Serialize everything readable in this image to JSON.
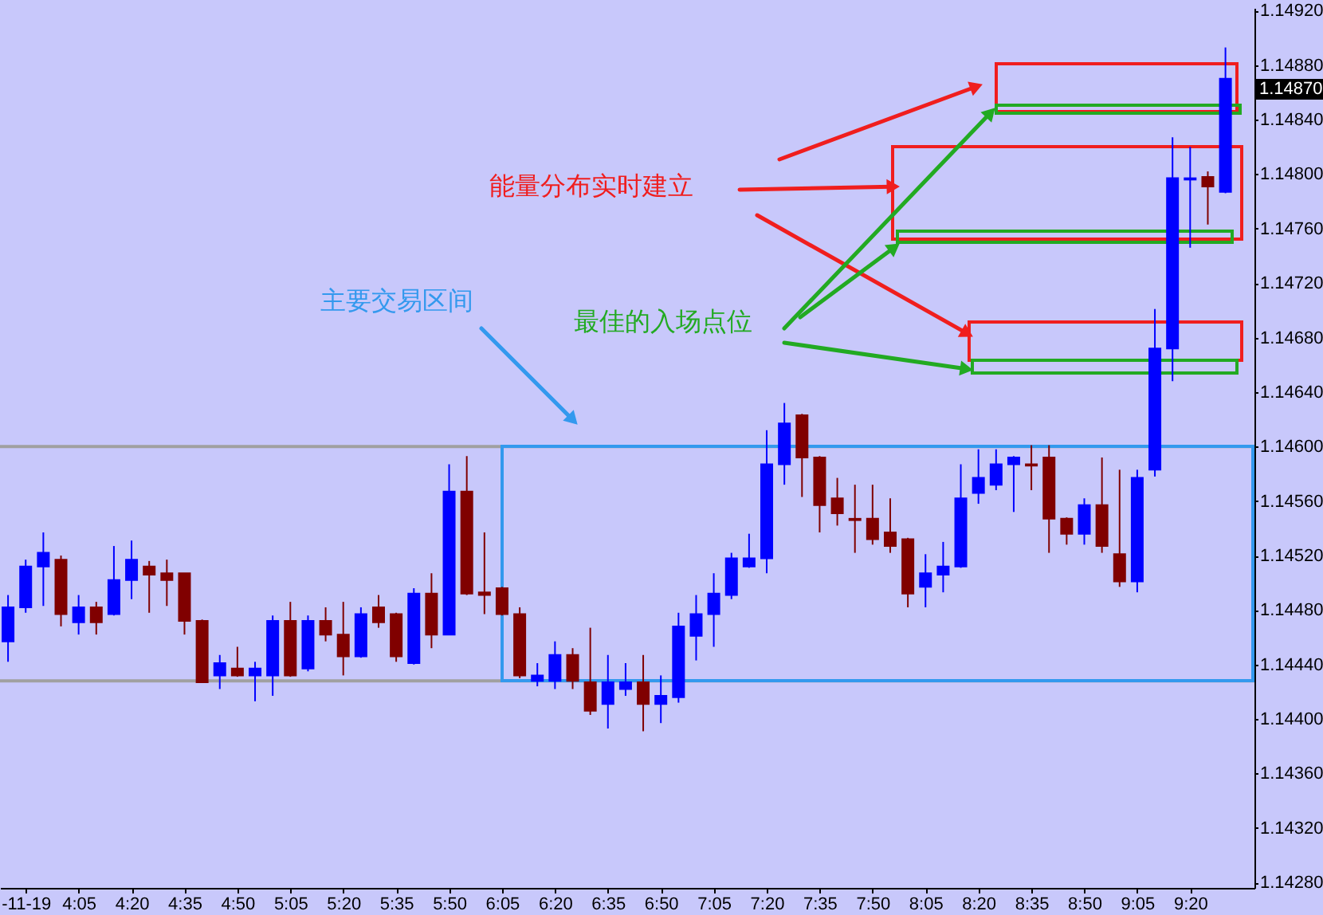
{
  "chart_data": {
    "type": "candlestick",
    "x": [
      3.75,
      3.8333,
      3.9167,
      4,
      4.0833,
      4.1667,
      4.25,
      4.3333,
      4.4167,
      4.5,
      4.5833,
      4.6667,
      4.75,
      4.8333,
      4.9167,
      5,
      5.0833,
      5.1667,
      5.25,
      5.3333,
      5.4167,
      5.5,
      5.5833,
      5.6667,
      5.75,
      5.8333,
      5.9167,
      6,
      6.0833,
      6.1667,
      6.25,
      6.3333,
      6.4167,
      6.5,
      6.5833,
      6.6667,
      6.75,
      6.8333,
      6.9167,
      7,
      7.0833,
      7.1667,
      7.25,
      7.3333,
      7.4167,
      7.5,
      7.5833,
      7.6667,
      7.75,
      7.8333,
      7.9167,
      8,
      8.0833,
      8.1667,
      8.25,
      8.3333,
      8.4167,
      8.5,
      8.5833,
      8.6667,
      8.75,
      8.8333,
      8.9167,
      9,
      9.0833,
      9.1667,
      9.25,
      9.3333,
      9.4167,
      9.5
    ],
    "ohlc": [
      [
        1.14457,
        1.14491,
        1.14442,
        1.14482
      ],
      [
        1.14482,
        1.14517,
        1.14478,
        1.14512
      ],
      [
        1.14512,
        1.14537,
        1.14483,
        1.14522
      ],
      [
        1.14517,
        1.1452,
        1.14468,
        1.14477
      ],
      [
        1.14471,
        1.14491,
        1.14462,
        1.14482
      ],
      [
        1.14482,
        1.14486,
        1.14462,
        1.14471
      ],
      [
        1.14477,
        1.14527,
        1.14476,
        1.14502
      ],
      [
        1.14502,
        1.14531,
        1.14488,
        1.14517
      ],
      [
        1.14512,
        1.14516,
        1.14478,
        1.14506
      ],
      [
        1.14507,
        1.14517,
        1.14483,
        1.14502
      ],
      [
        1.14507,
        1.14507,
        1.14462,
        1.14472
      ],
      [
        1.14472,
        1.14473,
        1.14427,
        1.14427
      ],
      [
        1.14432,
        1.14447,
        1.14422,
        1.14441
      ],
      [
        1.14437,
        1.14453,
        1.14431,
        1.14432
      ],
      [
        1.14432,
        1.14442,
        1.14413,
        1.14437
      ],
      [
        1.14432,
        1.14476,
        1.14417,
        1.14472
      ],
      [
        1.14472,
        1.14486,
        1.14431,
        1.14432
      ],
      [
        1.14437,
        1.14476,
        1.14435,
        1.14472
      ],
      [
        1.14472,
        1.14482,
        1.14457,
        1.14462
      ],
      [
        1.14462,
        1.14486,
        1.14432,
        1.14446
      ],
      [
        1.14446,
        1.14482,
        1.14445,
        1.14477
      ],
      [
        1.14482,
        1.14491,
        1.14467,
        1.14471
      ],
      [
        1.14477,
        1.14478,
        1.14442,
        1.14446
      ],
      [
        1.14441,
        1.14496,
        1.1444,
        1.14492
      ],
      [
        1.14492,
        1.14507,
        1.14452,
        1.14462
      ],
      [
        1.14462,
        1.14587,
        1.14462,
        1.14567
      ],
      [
        1.14567,
        1.14593,
        1.14491,
        1.14492
      ],
      [
        1.14493,
        1.14537,
        1.14477,
        1.14491
      ],
      [
        1.14496,
        1.14497,
        1.14476,
        1.14477
      ],
      [
        1.14477,
        1.14482,
        1.1443,
        1.14432
      ],
      [
        1.14428,
        1.14441,
        1.14424,
        1.14432
      ],
      [
        1.14428,
        1.14457,
        1.14422,
        1.14447
      ],
      [
        1.14447,
        1.14452,
        1.14422,
        1.14428
      ],
      [
        1.14427,
        1.14467,
        1.14403,
        1.14406
      ],
      [
        1.14411,
        1.14447,
        1.14393,
        1.14427
      ],
      [
        1.14422,
        1.14441,
        1.14417,
        1.14427
      ],
      [
        1.14427,
        1.14447,
        1.14391,
        1.14411
      ],
      [
        1.14411,
        1.14432,
        1.14397,
        1.14417
      ],
      [
        1.14416,
        1.14478,
        1.14412,
        1.14468
      ],
      [
        1.14461,
        1.14491,
        1.14443,
        1.14477
      ],
      [
        1.14477,
        1.14507,
        1.14453,
        1.14492
      ],
      [
        1.14491,
        1.14522,
        1.14488,
        1.14518
      ],
      [
        1.14512,
        1.14536,
        1.14511,
        1.14518
      ],
      [
        1.14518,
        1.14612,
        1.14507,
        1.14587
      ],
      [
        1.14587,
        1.14632,
        1.14572,
        1.14617
      ],
      [
        1.14623,
        1.14624,
        1.14563,
        1.14592
      ],
      [
        1.14592,
        1.14593,
        1.14537,
        1.14557
      ],
      [
        1.14562,
        1.14577,
        1.14542,
        1.14551
      ],
      [
        1.14547,
        1.14572,
        1.14522,
        1.14546
      ],
      [
        1.14547,
        1.14572,
        1.14528,
        1.14532
      ],
      [
        1.14537,
        1.14562,
        1.14522,
        1.14527
      ],
      [
        1.14532,
        1.14533,
        1.14482,
        1.14492
      ],
      [
        1.14497,
        1.14521,
        1.14482,
        1.14507
      ],
      [
        1.14506,
        1.1453,
        1.14493,
        1.14512
      ],
      [
        1.14512,
        1.14587,
        1.14511,
        1.14562
      ],
      [
        1.14566,
        1.14598,
        1.14558,
        1.14577
      ],
      [
        1.14572,
        1.14598,
        1.14568,
        1.14587
      ],
      [
        1.14587,
        1.14593,
        1.14552,
        1.14592
      ],
      [
        1.14587,
        1.14601,
        1.14568,
        1.14586
      ],
      [
        1.14592,
        1.14601,
        1.14522,
        1.14547
      ],
      [
        1.14547,
        1.14548,
        1.14528,
        1.14536
      ],
      [
        1.14536,
        1.14562,
        1.14528,
        1.14557
      ],
      [
        1.14557,
        1.14592,
        1.14522,
        1.14527
      ],
      [
        1.14521,
        1.14583,
        1.14497,
        1.14501
      ],
      [
        1.14501,
        1.14583,
        1.14493,
        1.14577
      ],
      [
        1.14583,
        1.14701,
        1.14578,
        1.14672
      ],
      [
        1.14672,
        1.14827,
        1.14648,
        1.14797
      ],
      [
        1.14796,
        1.1482,
        1.14746,
        1.14797
      ],
      [
        1.14798,
        1.14802,
        1.14763,
        1.14791
      ],
      [
        1.14787,
        1.14893,
        1.14786,
        1.1487
      ]
    ],
    "colors": [
      "#0000ff",
      "#0000ff",
      "#0000ff",
      "#800000",
      "#0000ff",
      "#800000",
      "#0000ff",
      "#0000ff",
      "#800000",
      "#800000",
      "#800000",
      "#800000",
      "#0000ff",
      "#800000",
      "#0000ff",
      "#0000ff",
      "#800000",
      "#0000ff",
      "#800000",
      "#800000",
      "#0000ff",
      "#800000",
      "#800000",
      "#0000ff",
      "#800000",
      "#0000ff",
      "#800000",
      "#800000",
      "#800000",
      "#800000",
      "#0000ff",
      "#0000ff",
      "#800000",
      "#800000",
      "#0000ff",
      "#0000ff",
      "#800000",
      "#0000ff",
      "#0000ff",
      "#0000ff",
      "#0000ff",
      "#0000ff",
      "#0000ff",
      "#0000ff",
      "#0000ff",
      "#800000",
      "#800000",
      "#800000",
      "#800000",
      "#800000",
      "#800000",
      "#800000",
      "#0000ff",
      "#0000ff",
      "#0000ff",
      "#0000ff",
      "#0000ff",
      "#0000ff",
      "#800000",
      "#800000",
      "#800000",
      "#0000ff",
      "#800000",
      "#800000",
      "#0000ff",
      "#0000ff",
      "#0000ff",
      "#0000ff",
      "#800000",
      "#0000ff"
    ],
    "xlim": [
      3.712,
      9.637
    ],
    "xticks": [
      {
        "value": 3.8333,
        "label": "-11-19"
      },
      {
        "value": 4.0833,
        "label": "4:05"
      },
      {
        "value": 4.3333,
        "label": "4:20"
      },
      {
        "value": 4.5833,
        "label": "4:35"
      },
      {
        "value": 4.8333,
        "label": "4:50"
      },
      {
        "value": 5.0833,
        "label": "5:05"
      },
      {
        "value": 5.3333,
        "label": "5:20"
      },
      {
        "value": 5.5833,
        "label": "5:35"
      },
      {
        "value": 5.8333,
        "label": "5:50"
      },
      {
        "value": 6.0833,
        "label": "6:05"
      },
      {
        "value": 6.3333,
        "label": "6:20"
      },
      {
        "value": 6.5833,
        "label": "6:35"
      },
      {
        "value": 6.8333,
        "label": "6:50"
      },
      {
        "value": 7.0833,
        "label": "7:05"
      },
      {
        "value": 7.3333,
        "label": "7:20"
      },
      {
        "value": 7.5833,
        "label": "7:35"
      },
      {
        "value": 7.8333,
        "label": "7:50"
      },
      {
        "value": 8.0833,
        "label": "8:05"
      },
      {
        "value": 8.3333,
        "label": "8:20"
      },
      {
        "value": 8.5833,
        "label": "8:35"
      },
      {
        "value": 8.8333,
        "label": "8:50"
      },
      {
        "value": 9.0833,
        "label": "9:05"
      },
      {
        "value": 9.3333,
        "label": "9:20"
      }
    ],
    "ylim": [
      1.14276,
      1.14922
    ],
    "yticks": [
      {
        "value": 1.1428,
        "label": "1.14280"
      },
      {
        "value": 1.1432,
        "label": "1.14320"
      },
      {
        "value": 1.1436,
        "label": "1.14360"
      },
      {
        "value": 1.144,
        "label": "1.14400"
      },
      {
        "value": 1.1444,
        "label": "1.14440"
      },
      {
        "value": 1.1448,
        "label": "1.14480"
      },
      {
        "value": 1.1452,
        "label": "1.14520"
      },
      {
        "value": 1.1456,
        "label": "1.14560"
      },
      {
        "value": 1.146,
        "label": "1.14600"
      },
      {
        "value": 1.1464,
        "label": "1.14640"
      },
      {
        "value": 1.1468,
        "label": "1.14680"
      },
      {
        "value": 1.1472,
        "label": "1.14720"
      },
      {
        "value": 1.1476,
        "label": "1.14760"
      },
      {
        "value": 1.148,
        "label": "1.14800"
      },
      {
        "value": 1.1484,
        "label": "1.14840"
      },
      {
        "value": 1.1488,
        "label": "1.14880"
      },
      {
        "value": 1.1492,
        "label": "1.14920"
      }
    ],
    "ref_lines": [
      {
        "axis": "y",
        "value": 1.146,
        "color": "#a0a0a0"
      },
      {
        "axis": "y",
        "value": 1.14428,
        "color": "#a0a0a0"
      }
    ],
    "annotations": [
      "能量分布实时建立",
      "主要交易区间",
      "最佳的入场点位",
      "1.14870"
    ]
  }
}
